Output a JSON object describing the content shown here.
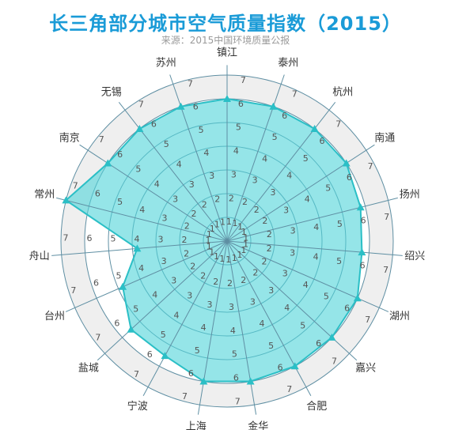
{
  "chart_data": {
    "type": "radar",
    "title": "长三角部分城市空气质量指数（2015）",
    "subtitle": "来源：2015中国环境质量公报",
    "categories": [
      "镇江",
      "泰州",
      "杭州",
      "南通",
      "扬州",
      "绍兴",
      "湖州",
      "嘉兴",
      "合肥",
      "金华",
      "上海",
      "宁波",
      "盐城",
      "台州",
      "舟山",
      "常州",
      "南京",
      "无锡",
      "苏州"
    ],
    "values": [
      6.0,
      6.0,
      6.0,
      6.0,
      5.8,
      5.7,
      6.0,
      6.0,
      6.0,
      6.0,
      6.0,
      5.5,
      5.5,
      4.8,
      3.8,
      7.0,
      6.0,
      6.0,
      6.0
    ],
    "rlim": [
      0,
      7
    ],
    "ticks": [
      1,
      2,
      3,
      4,
      5,
      6,
      7
    ],
    "colors": {
      "fill": "#4fd3d8",
      "line": "#2bbfc6",
      "grid": "#5f8fa3",
      "band": "#efefef",
      "title": "#1a9bd7"
    }
  }
}
